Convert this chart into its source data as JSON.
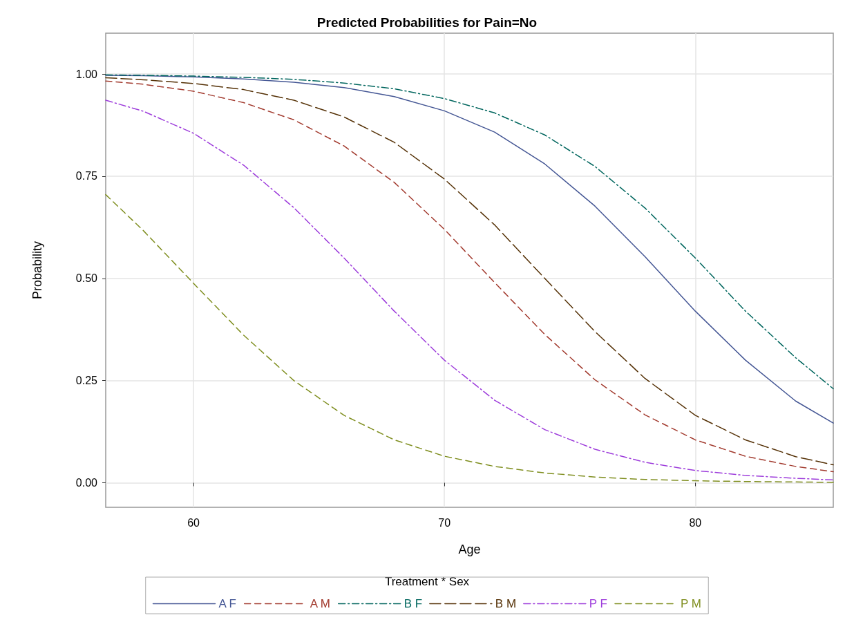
{
  "chart_data": {
    "type": "line",
    "title": "Predicted Probabilities for Pain=No",
    "xlabel": "Age",
    "ylabel": "Probability",
    "legend_title": "Treatment * Sex",
    "x": [
      56.5,
      58,
      60,
      62,
      64,
      66,
      68,
      70,
      72,
      74,
      76,
      78,
      80,
      82,
      84,
      85.5
    ],
    "series": [
      {
        "name": "A F",
        "color": "#445694",
        "line_style": "solid",
        "values": [
          0.997,
          0.996,
          0.993,
          0.988,
          0.98,
          0.967,
          0.945,
          0.91,
          0.858,
          0.78,
          0.677,
          0.553,
          0.42,
          0.3,
          0.2,
          0.146
        ]
      },
      {
        "name": "A M",
        "color": "#a23a2e",
        "line_style": "dashed",
        "values": [
          0.983,
          0.975,
          0.958,
          0.93,
          0.888,
          0.824,
          0.735,
          0.62,
          0.49,
          0.363,
          0.252,
          0.166,
          0.105,
          0.065,
          0.04,
          0.027
        ]
      },
      {
        "name": "B F",
        "color": "#01665e",
        "line_style": "dashdot",
        "values": [
          0.998,
          0.997,
          0.995,
          0.992,
          0.987,
          0.978,
          0.964,
          0.94,
          0.905,
          0.851,
          0.774,
          0.672,
          0.55,
          0.42,
          0.306,
          0.23
        ]
      },
      {
        "name": "B M",
        "color": "#543005",
        "line_style": "longdash",
        "values": [
          0.991,
          0.986,
          0.977,
          0.962,
          0.936,
          0.895,
          0.833,
          0.743,
          0.631,
          0.5,
          0.37,
          0.255,
          0.165,
          0.105,
          0.064,
          0.044
        ]
      },
      {
        "name": "P F",
        "color": "#9d3cdb",
        "line_style": "dashdot",
        "values": [
          0.936,
          0.909,
          0.855,
          0.777,
          0.673,
          0.55,
          0.42,
          0.3,
          0.202,
          0.13,
          0.082,
          0.05,
          0.03,
          0.018,
          0.011,
          0.007
        ]
      },
      {
        "name": "P M",
        "color": "#7f8e1f",
        "line_style": "dashed",
        "values": [
          0.705,
          0.617,
          0.488,
          0.361,
          0.25,
          0.165,
          0.105,
          0.065,
          0.04,
          0.024,
          0.014,
          0.008,
          0.005,
          0.003,
          0.002,
          0.001
        ]
      }
    ],
    "xlim": [
      56.5,
      85.5
    ],
    "xticks": [
      60,
      70,
      80
    ],
    "ylim": [
      -0.06,
      1.1
    ],
    "yticks": [
      {
        "value": 0,
        "label": "0.00"
      },
      {
        "value": 0.25,
        "label": "0.25"
      },
      {
        "value": 0.5,
        "label": "0.50"
      },
      {
        "value": 0.75,
        "label": "0.75"
      },
      {
        "value": 1,
        "label": "1.00"
      }
    ],
    "grid": true,
    "legend": "bottom",
    "marker": "none"
  }
}
